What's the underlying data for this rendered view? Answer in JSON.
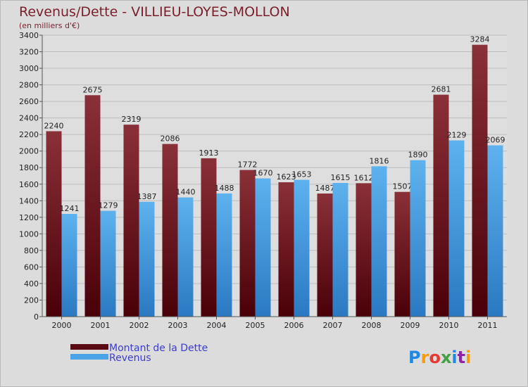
{
  "title": "Revenus/Dette - VILLIEU-LOYES-MOLLON",
  "subtitle": "(en milliers d'€)",
  "logo": "Proxiti",
  "chart_data": {
    "type": "bar",
    "categories": [
      "2000",
      "2001",
      "2002",
      "2003",
      "2004",
      "2005",
      "2006",
      "2007",
      "2008",
      "2009",
      "2010",
      "2011"
    ],
    "series": [
      {
        "name": "Montant de la Dette",
        "values": [
          2240,
          2675,
          2319,
          2086,
          1913,
          1772,
          1623,
          1487,
          1612,
          1507,
          2681,
          3284
        ],
        "color": "#7a1f2a"
      },
      {
        "name": "Revenus",
        "values": [
          1241,
          1279,
          1387,
          1440,
          1488,
          1670,
          1653,
          1615,
          1816,
          1890,
          2129,
          2069
        ],
        "color": "#4aa3e6"
      }
    ],
    "ylim": [
      0,
      3400
    ],
    "yticks": [
      0,
      200,
      400,
      600,
      800,
      1000,
      1200,
      1400,
      1600,
      1800,
      2000,
      2200,
      2400,
      2600,
      2800,
      3000,
      3200,
      3400
    ],
    "grid": true,
    "legend": "bottom-left"
  }
}
